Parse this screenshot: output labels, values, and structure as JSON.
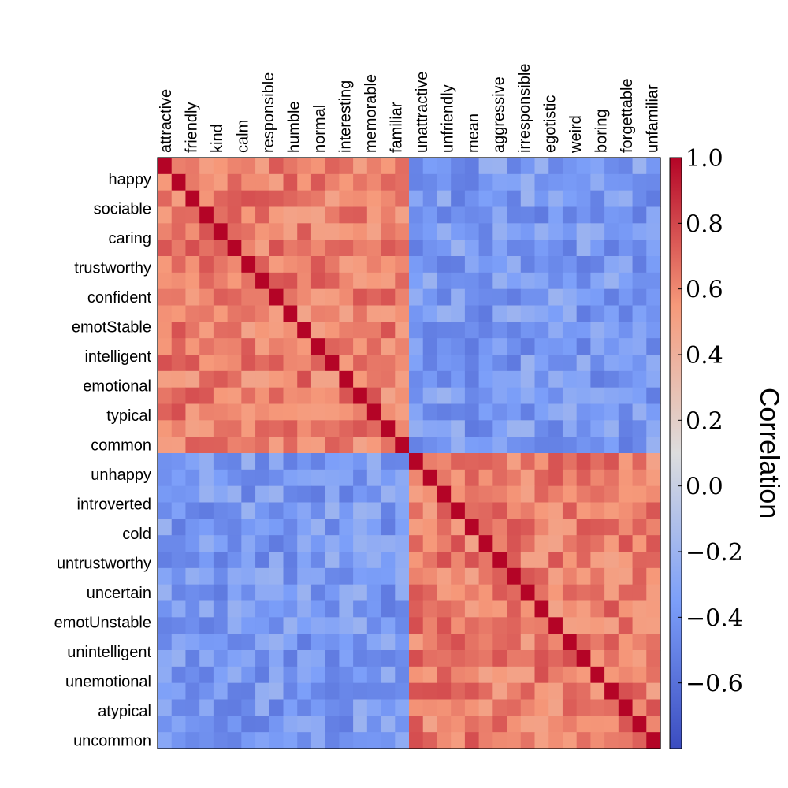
{
  "chart_data": {
    "type": "heatmap",
    "columns": [
      "attractive",
      "friendly",
      "kind",
      "calm",
      "responsible",
      "humble",
      "normal",
      "interesting",
      "memorable",
      "familiar",
      "unattractive",
      "unfriendly",
      "mean",
      "aggressive",
      "irresponsible",
      "egotistic",
      "weird",
      "boring",
      "forgettable",
      "unfamiliar"
    ],
    "rows": [
      "happy",
      "sociable",
      "caring",
      "trustworthy",
      "confident",
      "emotStable",
      "intelligent",
      "emotional",
      "typical",
      "common",
      "unhappy",
      "introverted",
      "cold",
      "untrustworthy",
      "uncertain",
      "emotUnstable",
      "unintelligent",
      "unemotional",
      "atypical",
      "uncommon"
    ],
    "colorbar": {
      "label": "Correlation",
      "ticks": [
        "1.0",
        "0.8",
        "0.6",
        "0.4",
        "0.2",
        "0.0",
        "−0.2",
        "−0.4",
        "−0.6"
      ],
      "vmin": -0.8,
      "vmax": 1.0,
      "colormap": "coolwarm"
    }
  }
}
